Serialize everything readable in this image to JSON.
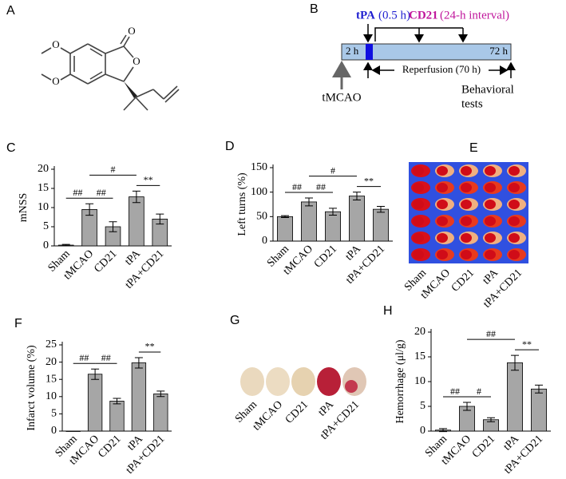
{
  "panel_labels": {
    "A": "A",
    "B": "B",
    "E": "E",
    "G": "G"
  },
  "structure_atoms": [
    "O",
    "O",
    "O",
    "O"
  ],
  "timeline": {
    "tpa": "tPA",
    "tpa_time": "(0.5 h)",
    "cd21": "CD21",
    "cd21_time": "(24-h interval)",
    "start": "2 h",
    "end": "72 h",
    "reperfusion": "Reperfusion (70 h)",
    "tmcao": "tMCAO",
    "behavioral": [
      "Behavioral",
      "tests"
    ]
  },
  "slice_labels": [
    "Sham",
    "tMCAO",
    "CD21",
    "tPA",
    "tPA+CD21"
  ],
  "brain_labels": [
    "Sham",
    "tMCAO",
    "CD21",
    "tPA",
    "tPA+CD21"
  ],
  "chart_data": [
    {
      "type": "bar",
      "label": "C",
      "ylabel": "mNSS",
      "categories": [
        "Sham",
        "tMCAO",
        "CD21",
        "tPA",
        "tPA+CD21"
      ],
      "values": [
        0.2,
        9.5,
        5,
        12.8,
        7
      ],
      "errors": [
        0.2,
        1.5,
        1.3,
        1.5,
        1.3
      ],
      "color": "#a6a6a6",
      "ylim": [
        0,
        20
      ],
      "yticks": [
        0,
        5,
        10,
        15,
        20
      ],
      "annotations": [
        "##",
        "##",
        "#",
        "**"
      ]
    },
    {
      "type": "bar",
      "label": "D",
      "ylabel": "Left turns (%)",
      "categories": [
        "Sham",
        "tMCAO",
        "CD21",
        "tPA",
        "tPA+CD21"
      ],
      "values": [
        50,
        80,
        60,
        92,
        65
      ],
      "errors": [
        2,
        8,
        7,
        8,
        6
      ],
      "color": "#a6a6a6",
      "ylim": [
        0,
        150
      ],
      "yticks": [
        0,
        50,
        100,
        150
      ],
      "annotations": [
        "##",
        "##",
        "#",
        "**"
      ]
    },
    {
      "type": "bar",
      "label": "F",
      "ylabel": "Infarct volume (%)",
      "categories": [
        "Sham",
        "tMCAO",
        "CD21",
        "tPA",
        "tPA+CD21"
      ],
      "values": [
        0,
        16.5,
        8.7,
        19.8,
        10.8
      ],
      "errors": [
        0,
        1.5,
        0.8,
        1.5,
        0.8
      ],
      "color": "#a6a6a6",
      "ylim": [
        0,
        25
      ],
      "yticks": [
        0,
        5,
        10,
        15,
        20,
        25
      ],
      "annotations": [
        "##",
        "##",
        "**"
      ]
    },
    {
      "type": "bar",
      "label": "H",
      "ylabel": "Hemorrhage (μl/g)",
      "categories": [
        "Sham",
        "tMCAO",
        "CD21",
        "tPA",
        "tPA+CD21"
      ],
      "values": [
        0.2,
        5,
        2.3,
        13.8,
        8.5
      ],
      "errors": [
        0.3,
        0.8,
        0.4,
        1.5,
        0.8
      ],
      "color": "#a6a6a6",
      "ylim": [
        0,
        20
      ],
      "yticks": [
        0,
        5,
        10,
        15,
        20
      ],
      "annotations": [
        "##",
        "#",
        "##",
        "**"
      ]
    }
  ]
}
